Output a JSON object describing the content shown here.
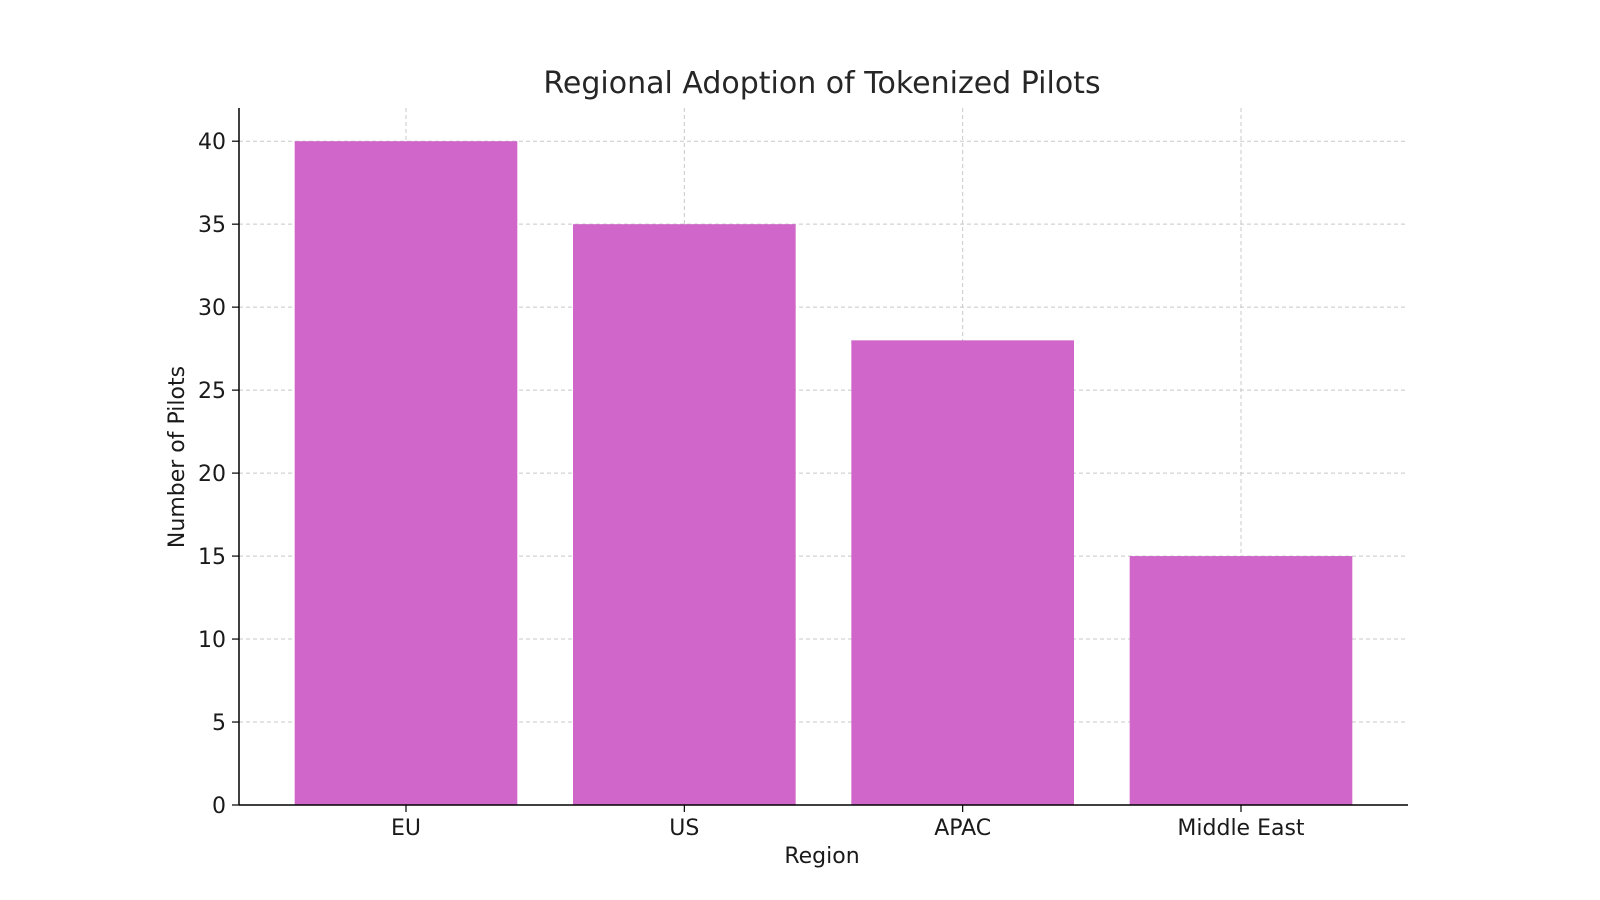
{
  "chart_data": {
    "type": "bar",
    "title": "Regional Adoption of Tokenized Pilots",
    "xlabel": "Region",
    "ylabel": "Number of Pilots",
    "categories": [
      "EU",
      "US",
      "APAC",
      "Middle East"
    ],
    "values": [
      40,
      35,
      28,
      15
    ],
    "ylim": [
      0,
      42
    ],
    "yticks": [
      0,
      5,
      10,
      15,
      20,
      25,
      30,
      35,
      40
    ],
    "grid": true,
    "bar_color": "#cf63c8"
  }
}
